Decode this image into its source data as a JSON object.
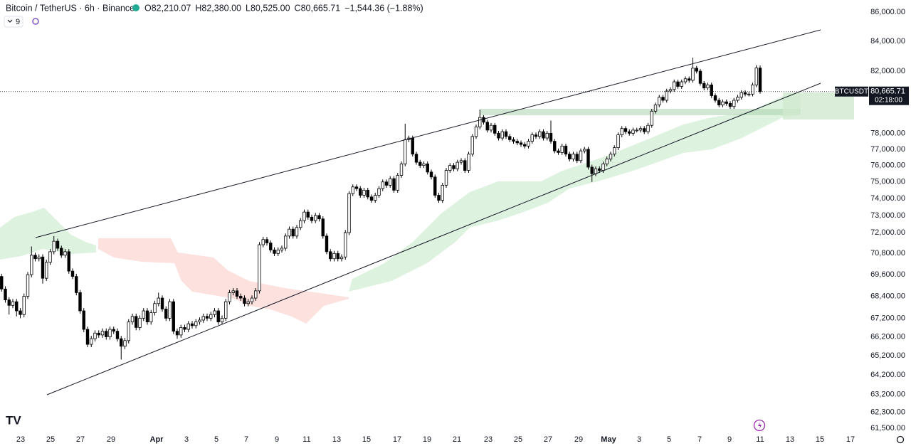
{
  "chart_data": {
    "type": "candlestick",
    "title": "Bitcoin / TetherUS · 6h · Binance",
    "ohlc_legend": [
      {
        "key": "O",
        "value": "82,210.07"
      },
      {
        "key": "H",
        "value": "82,380.00"
      },
      {
        "key": "L",
        "value": "80,525.00"
      },
      {
        "key": "C",
        "value": "80,665.71"
      }
    ],
    "change": "−1,544.36 (−1.88%)",
    "indicator_count": "9",
    "symbol": "BTCUSDT",
    "price_label": "80,665.71",
    "countdown": "02:18:00",
    "log_scale": true,
    "grid": false,
    "up_color": "#ffffff",
    "down_color": "#000000",
    "ylim": [
      61395,
      86842
    ],
    "yticks": [
      {
        "value": 86000,
        "label": "86,000.00"
      },
      {
        "value": 84000,
        "label": "84,000.00"
      },
      {
        "value": 82000,
        "label": "82,000.00"
      },
      {
        "value": 78000,
        "label": "78,000.00"
      },
      {
        "value": 77000,
        "label": "77,000.00"
      },
      {
        "value": 76000,
        "label": "76,000.00"
      },
      {
        "value": 75000,
        "label": "75,000.00"
      },
      {
        "value": 74000,
        "label": "74,000.00"
      },
      {
        "value": 73000,
        "label": "73,000.00"
      },
      {
        "value": 72000,
        "label": "72,000.00"
      },
      {
        "value": 70800,
        "label": "70,800.00"
      },
      {
        "value": 69600,
        "label": "69,600.00"
      },
      {
        "value": 68400,
        "label": "68,400.00"
      },
      {
        "value": 67200,
        "label": "67,200.00"
      },
      {
        "value": 66200,
        "label": "66,200.00"
      },
      {
        "value": 65200,
        "label": "65,200.00"
      },
      {
        "value": 64200,
        "label": "64,200.00"
      },
      {
        "value": 63200,
        "label": "63,200.00"
      },
      {
        "value": 62300,
        "label": "62,300.00"
      },
      {
        "value": 61500,
        "label": "61,500.00"
      }
    ],
    "x_labels": [
      "23",
      "25",
      "27",
      "29",
      "Apr",
      "3",
      "5",
      "7",
      "9",
      "11",
      "13",
      "15",
      "17",
      "19",
      "21",
      "23",
      "25",
      "27",
      "29",
      "May",
      "3",
      "5",
      "7",
      "9",
      "11",
      "13",
      "15",
      "17"
    ],
    "open": [
      69500,
      68800,
      68200,
      67900,
      68100,
      67600,
      67400,
      68400,
      69600,
      70700,
      70500,
      70600,
      69400,
      70300,
      70900,
      71500,
      71100,
      70700,
      70900,
      69800,
      69500,
      68600,
      67600,
      66600,
      65800,
      66100,
      66400,
      66300,
      66500,
      66200,
      66600,
      66500,
      66100,
      65700,
      66000,
      67000,
      67300,
      66700,
      67200,
      67600,
      67000,
      67500,
      68000,
      68300,
      67700,
      67200,
      68100,
      66500,
      66300,
      66700,
      66600,
      66900,
      66800,
      67000,
      67100,
      67300,
      67200,
      67400,
      67600,
      67000,
      67200,
      68100,
      68600,
      68700,
      68400,
      68300,
      68000,
      68100,
      68300,
      68700,
      71300,
      71600,
      71400,
      71000,
      70800,
      71000,
      71100,
      71800,
      72200,
      71800,
      72300,
      72700,
      73200,
      72900,
      72700,
      73000,
      72800,
      71800,
      70900,
      70500,
      70800,
      70500,
      70600,
      72000,
      74300,
      74700,
      74600,
      74200,
      74500,
      74100,
      73900,
      74200,
      74600,
      75000,
      74800,
      75200,
      74500,
      75400,
      76100,
      77600,
      77700,
      76700,
      76200,
      76000,
      76100,
      75600,
      75300,
      74200,
      73900,
      74800,
      75700,
      76000,
      75800,
      76200,
      76300,
      75700,
      76700,
      77800,
      78400,
      79000,
      78700,
      78200,
      78500,
      78000,
      77700,
      78100,
      77800,
      77600,
      77500,
      77400,
      77300,
      77200,
      77500,
      77900,
      77800,
      78100,
      77700,
      78000,
      77500,
      76900,
      76800,
      77200,
      76700,
      76400,
      76700,
      76300,
      76900,
      77000,
      75900,
      75500,
      75800,
      75700,
      76100,
      76400,
      76700,
      77100,
      77900,
      78300,
      78100,
      78000,
      78200,
      78200,
      78300,
      78100,
      78500,
      79400,
      79800,
      80300,
      80100,
      80700,
      80800,
      81300,
      81000,
      81300,
      81500,
      81400,
      82200,
      82000,
      81200,
      80900,
      81100,
      80400,
      80100,
      79800,
      80000,
      79900,
      79700,
      80100,
      80300,
      80600,
      80500,
      80500,
      81100,
      82210.07
    ],
    "high": [
      69650,
      68950,
      68350,
      68250,
      68250,
      67750,
      68550,
      69750,
      71200,
      70850,
      70750,
      70750,
      70450,
      71050,
      71800,
      71650,
      71250,
      71050,
      71050,
      69950,
      69650,
      68750,
      67750,
      66750,
      66250,
      66550,
      66550,
      66650,
      66650,
      66750,
      66750,
      66650,
      66250,
      66150,
      67150,
      67450,
      67450,
      67350,
      67750,
      67750,
      67650,
      68150,
      68600,
      68450,
      67850,
      68250,
      68250,
      66650,
      66850,
      66850,
      67050,
      67050,
      67150,
      67250,
      67450,
      67450,
      67550,
      67750,
      67750,
      67350,
      68250,
      68750,
      68850,
      68850,
      68550,
      68450,
      68250,
      68450,
      68850,
      71450,
      71750,
      71750,
      71550,
      71150,
      71150,
      71250,
      71950,
      72350,
      72350,
      72450,
      72850,
      73350,
      73350,
      73050,
      73150,
      73150,
      72950,
      71950,
      71050,
      70950,
      70950,
      70750,
      72150,
      74450,
      74850,
      74850,
      74750,
      74650,
      74650,
      74250,
      74350,
      74750,
      75150,
      75150,
      75350,
      75350,
      75550,
      76250,
      78600,
      77850,
      77850,
      76850,
      76350,
      76250,
      76250,
      75750,
      75450,
      74350,
      74950,
      75850,
      76150,
      76150,
      76350,
      76450,
      76450,
      76850,
      77950,
      78550,
      79500,
      79150,
      78850,
      78650,
      78650,
      78150,
      78250,
      78250,
      77950,
      77750,
      77650,
      77550,
      77450,
      77650,
      78050,
      78050,
      78250,
      78250,
      78150,
      78800,
      77650,
      77050,
      77350,
      77350,
      76850,
      76850,
      76850,
      77050,
      77150,
      77150,
      76050,
      75950,
      75950,
      76250,
      76550,
      76850,
      77250,
      78050,
      78450,
      78450,
      78250,
      78350,
      78350,
      78450,
      78450,
      78650,
      79550,
      79950,
      80450,
      80450,
      80850,
      80950,
      81450,
      81450,
      81450,
      81650,
      81650,
      82900,
      82350,
      82150,
      81350,
      81250,
      81250,
      80550,
      80250,
      80150,
      80150,
      80050,
      80250,
      80450,
      80750,
      80750,
      80650,
      81250,
      82400,
      82380
    ],
    "low": [
      68650,
      68050,
      67400,
      67750,
      67300,
      67200,
      67250,
      68250,
      69450,
      70350,
      70350,
      69100,
      69250,
      70150,
      70750,
      70950,
      70550,
      70550,
      69650,
      69350,
      68450,
      67450,
      66450,
      65650,
      65650,
      65950,
      66150,
      66150,
      66050,
      66050,
      66350,
      65950,
      65000,
      65550,
      65850,
      66850,
      66550,
      66550,
      67050,
      66850,
      66850,
      67350,
      67850,
      67550,
      67050,
      67050,
      66350,
      66100,
      66150,
      66450,
      66450,
      66650,
      66650,
      66850,
      66950,
      67050,
      67050,
      67250,
      66850,
      66850,
      67050,
      67950,
      68450,
      68250,
      68150,
      67850,
      67850,
      67950,
      68150,
      68550,
      71150,
      71250,
      70850,
      70650,
      70650,
      70850,
      70950,
      71650,
      71650,
      71650,
      72150,
      72550,
      72750,
      72550,
      72550,
      72650,
      71650,
      70750,
      70350,
      70350,
      70350,
      70350,
      70450,
      71850,
      74150,
      74450,
      74050,
      74050,
      73950,
      73750,
      73750,
      74050,
      74450,
      74650,
      74650,
      74350,
      74350,
      75250,
      75950,
      77450,
      76550,
      76050,
      75850,
      75850,
      75450,
      75150,
      74050,
      73750,
      73750,
      74650,
      75550,
      75650,
      75650,
      76050,
      75550,
      75550,
      76550,
      77650,
      78250,
      78550,
      78050,
      78050,
      77850,
      77550,
      77550,
      77650,
      77450,
      77350,
      77250,
      77150,
      77050,
      77050,
      77350,
      77650,
      77650,
      77550,
      77550,
      77350,
      76750,
      76650,
      76650,
      76550,
      76250,
      76250,
      76150,
      76150,
      76750,
      75750,
      75000,
      75350,
      75550,
      75550,
      75950,
      76250,
      76550,
      76950,
      77750,
      77950,
      77850,
      77850,
      78050,
      78050,
      77950,
      77950,
      78350,
      79250,
      79650,
      79950,
      79950,
      80550,
      80650,
      80850,
      80850,
      81150,
      81250,
      81250,
      81850,
      81050,
      80750,
      80750,
      80250,
      79950,
      79650,
      79650,
      79750,
      79550,
      79550,
      79950,
      80150,
      80350,
      80350,
      80350,
      80950,
      80525
    ],
    "close": [
      68800,
      68200,
      67900,
      68100,
      67600,
      67400,
      68400,
      69600,
      70700,
      70500,
      70600,
      69400,
      70300,
      70900,
      71500,
      71100,
      70700,
      70900,
      69800,
      69500,
      68600,
      67600,
      66600,
      65800,
      66100,
      66400,
      66300,
      66500,
      66200,
      66600,
      66500,
      66100,
      65700,
      66000,
      67000,
      67300,
      66700,
      67200,
      67600,
      67000,
      67500,
      68000,
      68300,
      67700,
      67200,
      68100,
      66500,
      66300,
      66700,
      66600,
      66900,
      66800,
      67000,
      67100,
      67300,
      67200,
      67400,
      67600,
      67000,
      67200,
      68100,
      68600,
      68700,
      68400,
      68300,
      68000,
      68100,
      68300,
      68700,
      71300,
      71600,
      71400,
      71000,
      70800,
      71000,
      71100,
      71800,
      72200,
      71800,
      72300,
      72700,
      73200,
      72900,
      72700,
      73000,
      72800,
      71800,
      70900,
      70500,
      70800,
      70500,
      70600,
      72000,
      74300,
      74700,
      74600,
      74200,
      74500,
      74100,
      73900,
      74200,
      74600,
      75000,
      74800,
      75200,
      74500,
      75400,
      76100,
      77600,
      77700,
      76700,
      76200,
      76000,
      76100,
      75600,
      75300,
      74200,
      73900,
      74800,
      75700,
      76000,
      75800,
      76200,
      76300,
      75700,
      76700,
      77800,
      78400,
      79000,
      78700,
      78200,
      78500,
      78000,
      77700,
      78100,
      77800,
      77600,
      77500,
      77400,
      77300,
      77200,
      77500,
      77900,
      77800,
      78100,
      77700,
      78000,
      77500,
      76900,
      76800,
      77200,
      76700,
      76400,
      76700,
      76300,
      76900,
      77000,
      75900,
      75500,
      75800,
      75700,
      76100,
      76400,
      76700,
      77100,
      77900,
      78300,
      78100,
      78000,
      78200,
      78200,
      78300,
      78100,
      78500,
      79400,
      79800,
      80300,
      80100,
      80700,
      80800,
      81300,
      81000,
      81300,
      81500,
      81400,
      82200,
      82000,
      81200,
      80900,
      81100,
      80400,
      80100,
      79800,
      80000,
      79900,
      79700,
      80100,
      80300,
      80600,
      80500,
      80500,
      81100,
      82210.07,
      80665.71
    ]
  }
}
